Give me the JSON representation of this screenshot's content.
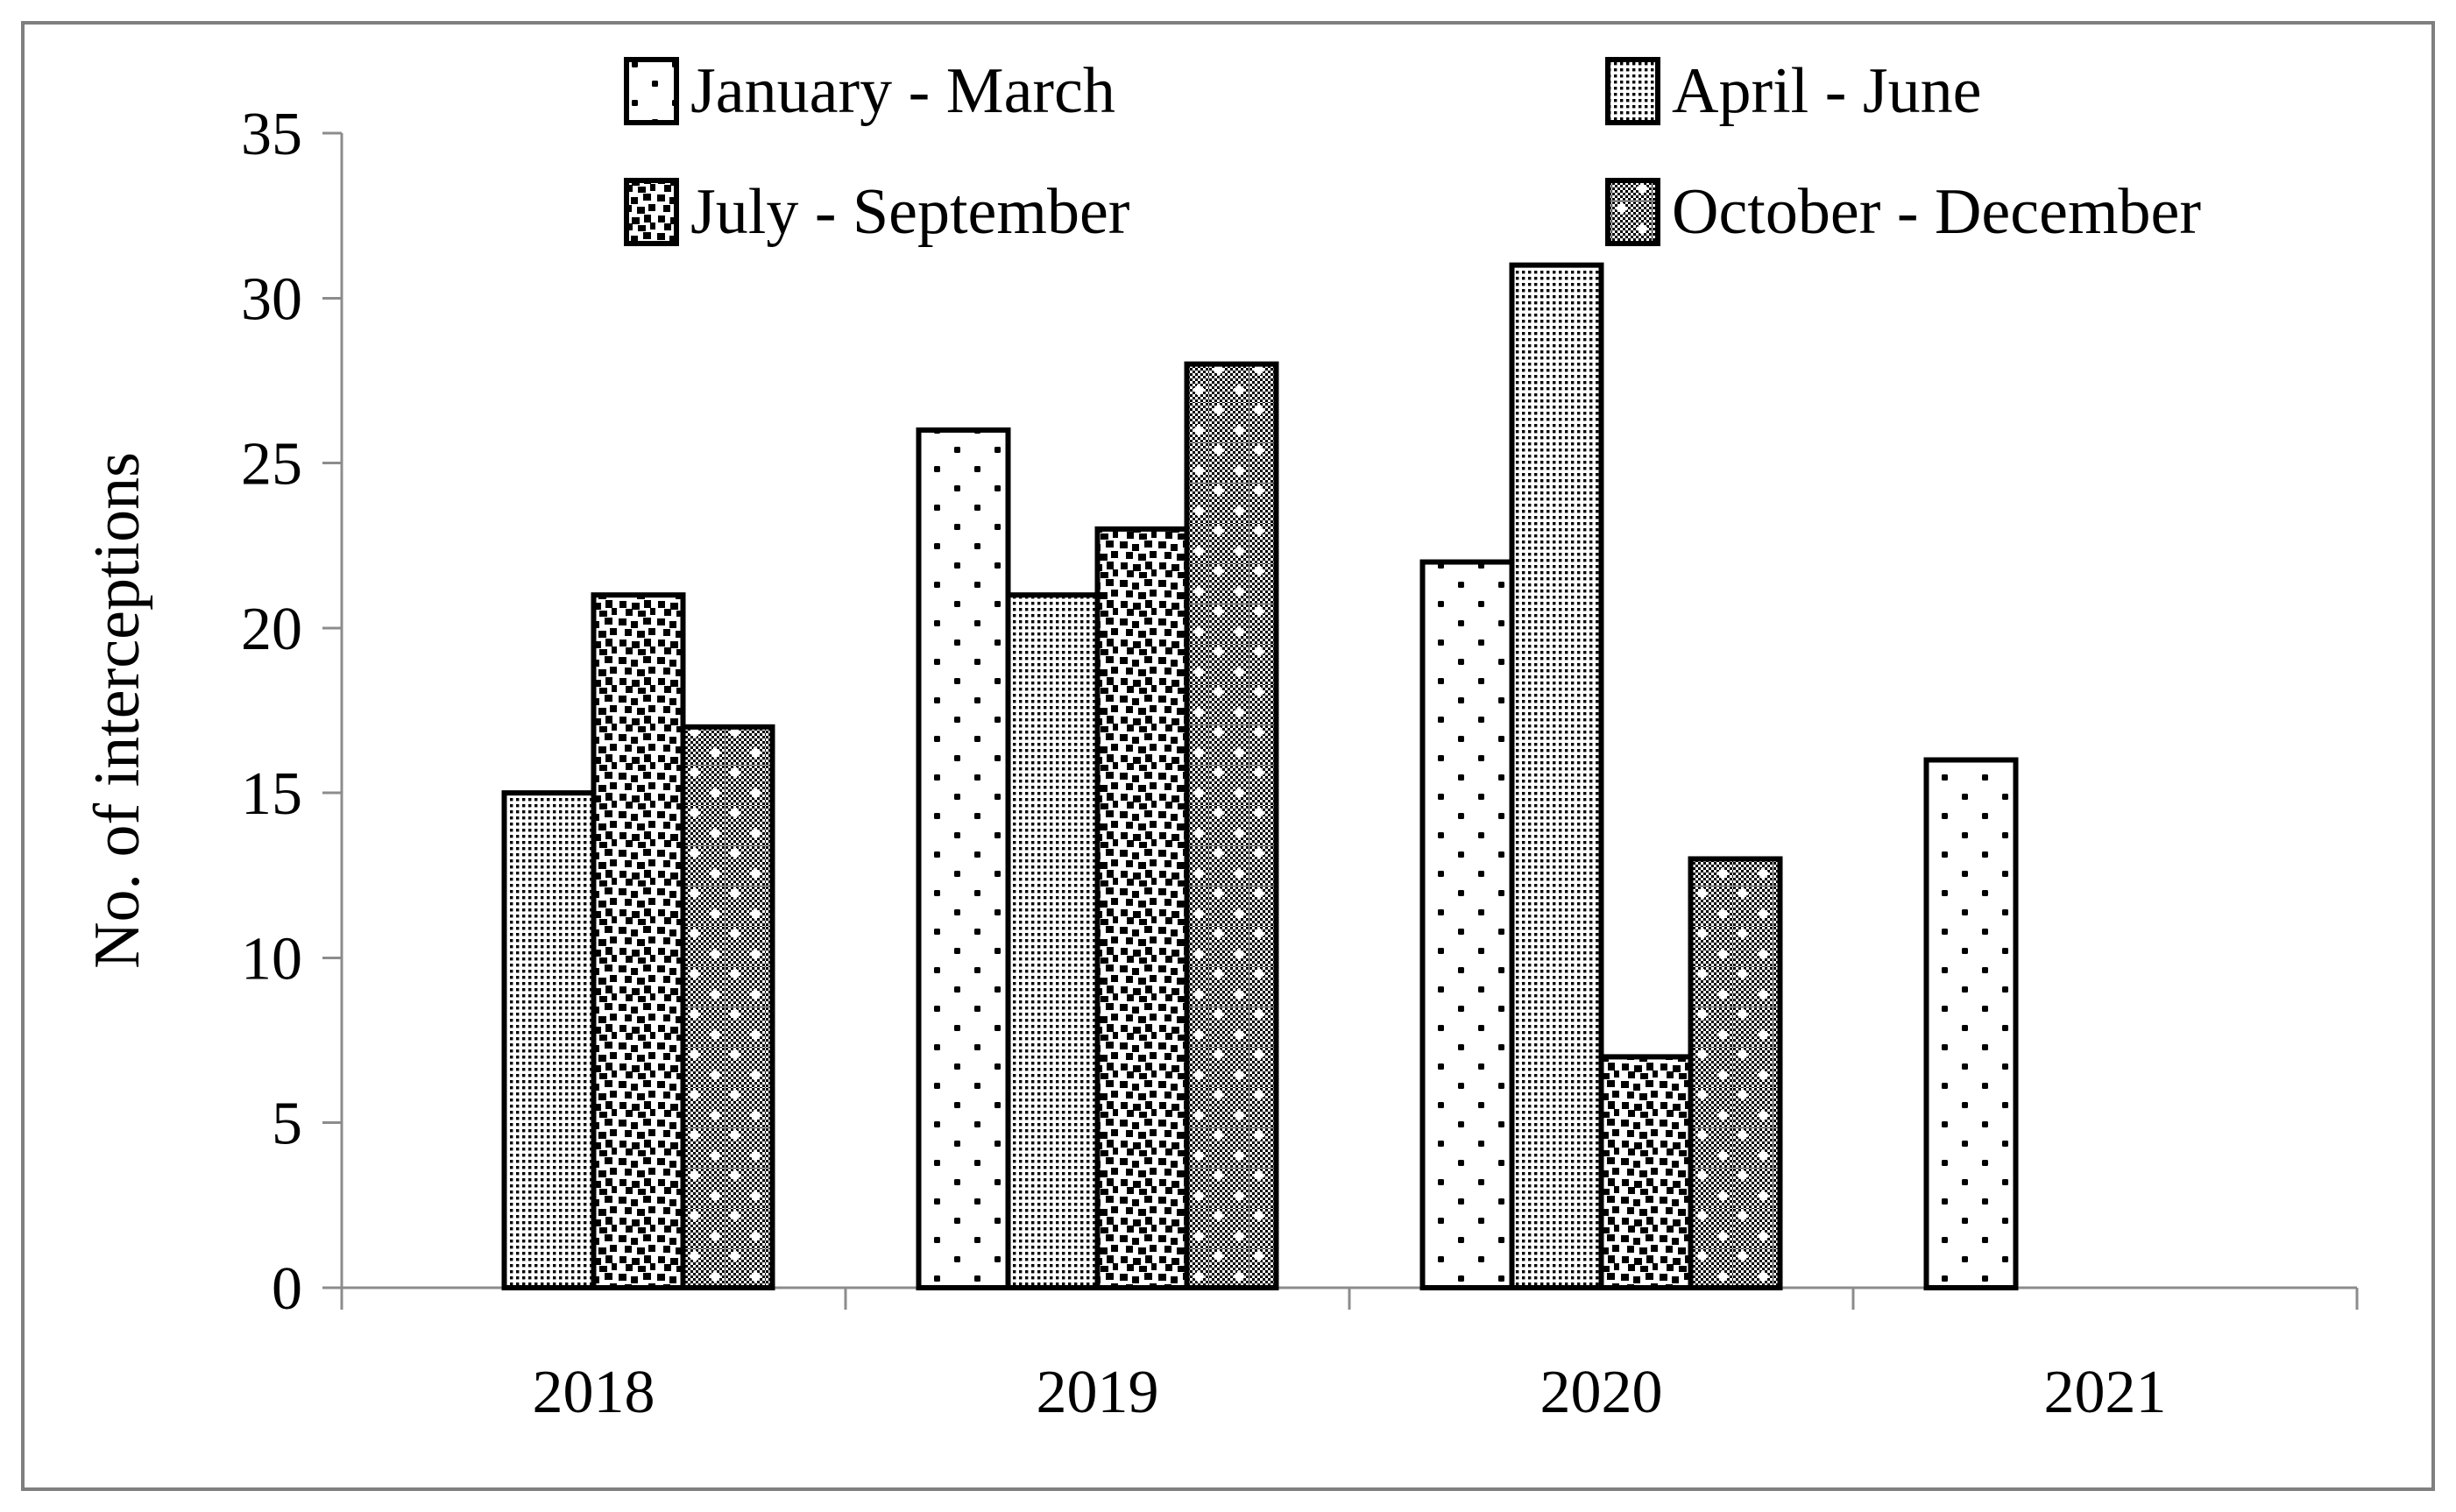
{
  "figure": {
    "background_color": "#ffffff",
    "border_color": "#7f7f7f"
  },
  "chart_data": {
    "type": "bar",
    "title": "",
    "ylabel": "No. of interceptions",
    "xlabel": "",
    "ylim": [
      0,
      35
    ],
    "yticks": [
      0,
      5,
      10,
      15,
      20,
      25,
      30,
      35
    ],
    "grid": false,
    "legend_position": "top",
    "legend_columns": 2,
    "categories": [
      "2018",
      "2019",
      "2020",
      "2021"
    ],
    "series": [
      {
        "name": "January - March",
        "pattern": "sparse-dots",
        "values": [
          null,
          26,
          22,
          16
        ]
      },
      {
        "name": "April - June",
        "pattern": "fine-dot-grid",
        "values": [
          15,
          21,
          31,
          null
        ]
      },
      {
        "name": "July - September",
        "pattern": "random-black-squares",
        "values": [
          21,
          23,
          7,
          null
        ]
      },
      {
        "name": "October - December",
        "pattern": "dark-weave-white-cross",
        "values": [
          17,
          28,
          13,
          null
        ]
      }
    ],
    "colors": {
      "bar_fill_base": "#ffffff",
      "bar_pattern_ink": "#000000",
      "bar_outline": "#000000",
      "axis": "#8c8c8c",
      "text": "#000000"
    }
  }
}
